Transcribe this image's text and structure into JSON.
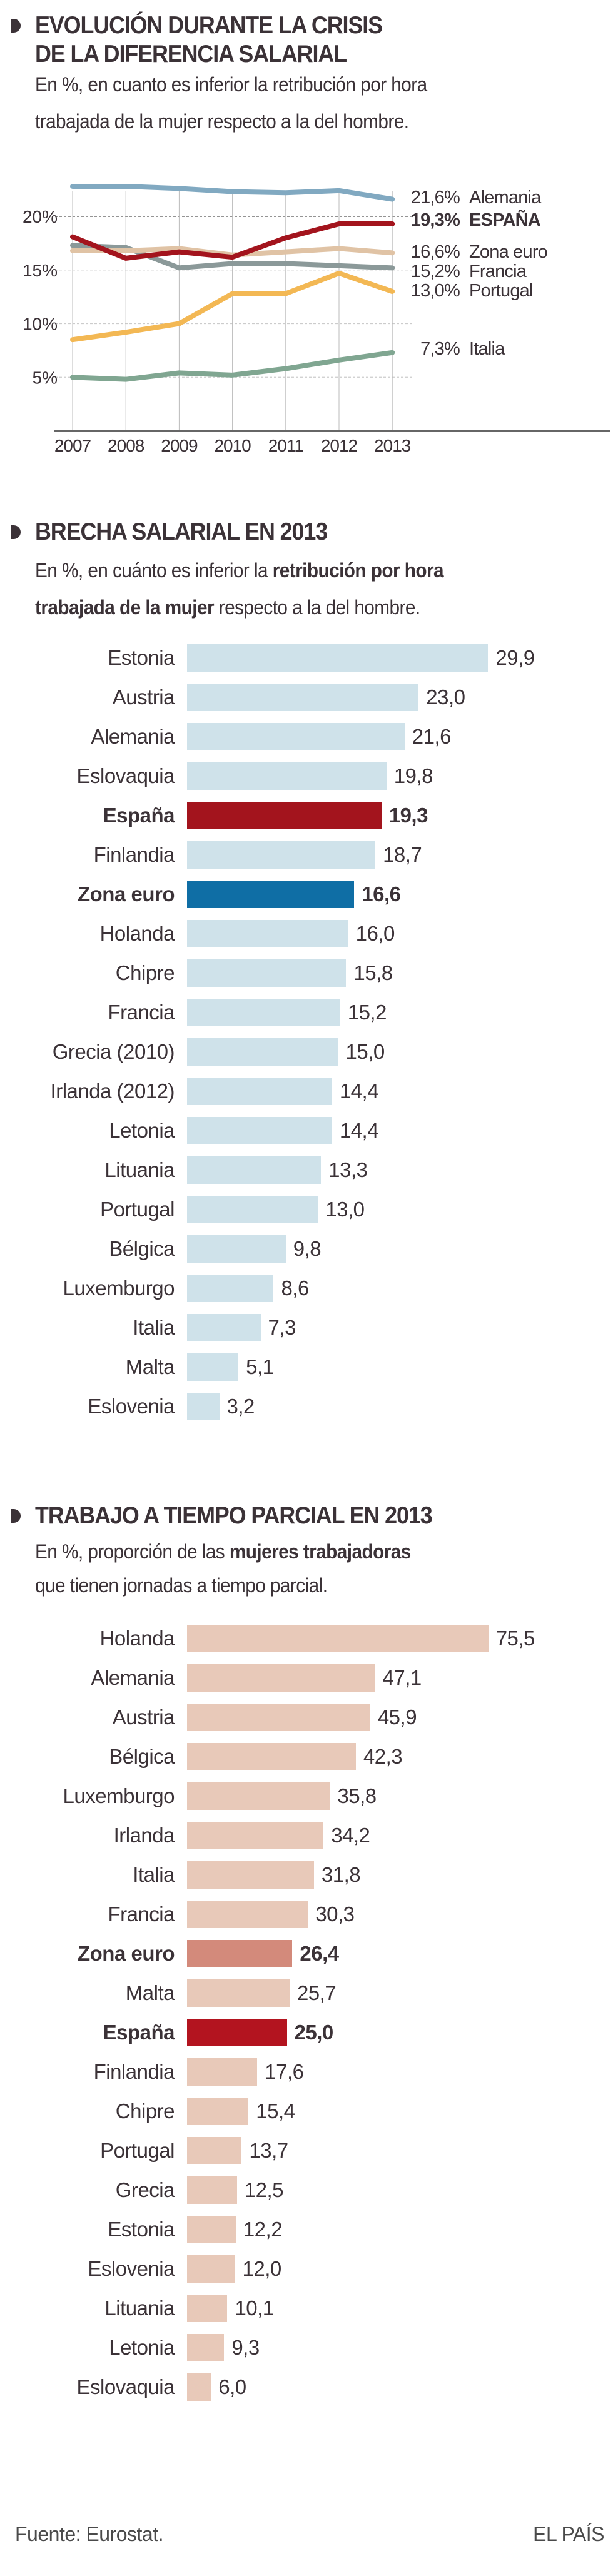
{
  "section1": {
    "title_line1": "EVOLUCIÓN DURANTE LA CRISIS",
    "title_line2": "DE LA DIFERENCIA SALARIAL",
    "subtitle_line1": "En %, en cuanto es inferior la retribución por hora",
    "subtitle_line2": "trabajada de la mujer respecto a la del hombre."
  },
  "section2": {
    "title": "BRECHA SALARIAL EN 2013",
    "subtitle_line1": [
      {
        "text": "En %, en cuánto es inferior la ",
        "bold": false
      },
      {
        "text": "retribución por hora",
        "bold": true
      }
    ],
    "subtitle_line2": [
      {
        "text": "trabajada de la mujer",
        "bold": true
      },
      {
        "text": " respecto a la del hombre.",
        "bold": false
      }
    ]
  },
  "section3": {
    "title": "TRABAJO A TIEMPO PARCIAL EN 2013",
    "subtitle_line1": [
      {
        "text": "En %, proporción de las ",
        "bold": false
      },
      {
        "text": "mujeres trabajadoras",
        "bold": true
      }
    ],
    "subtitle_line2": [
      {
        "text": "que tienen jornadas a tiempo parcial.",
        "bold": false
      }
    ]
  },
  "footer": {
    "source": "Fuente: Eurostat.",
    "brand": "EL PAÍS"
  },
  "chart_data": [
    {
      "type": "line",
      "title": "EVOLUCIÓN DURANTE LA CRISIS DE LA DIFERENCIA SALARIAL",
      "x": [
        2007,
        2008,
        2009,
        2010,
        2011,
        2012,
        2013
      ],
      "x_tick_labels": [
        "2007",
        "2008",
        "2009",
        "2010",
        "2011",
        "2012",
        "2013"
      ],
      "y_ticks": [
        5,
        10,
        15,
        20
      ],
      "y_tick_labels": [
        "5%",
        "10%",
        "15%",
        "20%"
      ],
      "ylim": [
        0,
        23
      ],
      "grid": "horizontal dashed + vertical per year",
      "legend": "end-of-line labels, right",
      "series": [
        {
          "name": "Alemania",
          "end_label": "21,6%",
          "color": "#81a9c1",
          "bold": false,
          "values": [
            22.8,
            22.8,
            22.6,
            22.3,
            22.2,
            22.4,
            21.6
          ]
        },
        {
          "name": "ESPAÑA",
          "end_label": "19,3%",
          "color": "#a3141d",
          "bold": true,
          "values": [
            18.1,
            16.1,
            16.7,
            16.2,
            18.0,
            19.3,
            19.3
          ]
        },
        {
          "name": "Zona euro",
          "end_label": "16,6%",
          "color": "#e0c3a5",
          "bold": false,
          "values": [
            16.8,
            16.8,
            17.0,
            16.4,
            16.7,
            17.0,
            16.6
          ]
        },
        {
          "name": "Francia",
          "end_label": "15,2%",
          "color": "#8b9999",
          "bold": false,
          "values": [
            17.3,
            17.1,
            15.2,
            15.6,
            15.6,
            15.4,
            15.2
          ]
        },
        {
          "name": "Portugal",
          "end_label": "13,0%",
          "color": "#f3b854",
          "bold": false,
          "values": [
            8.5,
            9.2,
            10.0,
            12.8,
            12.8,
            14.7,
            13.0
          ]
        },
        {
          "name": "Italia",
          "end_label": "7,3%",
          "color": "#80a691",
          "bold": false,
          "values": [
            5.0,
            4.8,
            5.4,
            5.2,
            5.8,
            6.6,
            7.3
          ]
        }
      ]
    },
    {
      "type": "bar",
      "orientation": "horizontal",
      "title": "BRECHA SALARIAL EN 2013",
      "default_color": "#cfe2ea",
      "categories": [
        "Estonia",
        "Austria",
        "Alemania",
        "Eslovaquia",
        "España",
        "Finlandia",
        "Zona euro",
        "Holanda",
        "Chipre",
        "Francia",
        "Grecia (2010)",
        "Irlanda (2012)",
        "Letonia",
        "Lituania",
        "Portugal",
        "Bélgica",
        "Luxemburgo",
        "Italia",
        "Malta",
        "Eslovenia"
      ],
      "values": [
        29.9,
        23.0,
        21.6,
        19.8,
        19.3,
        18.7,
        16.6,
        16.0,
        15.8,
        15.2,
        15.0,
        14.4,
        14.4,
        13.3,
        13.0,
        9.8,
        8.6,
        7.3,
        5.1,
        3.2
      ],
      "value_labels": [
        "29,9",
        "23,0",
        "21,6",
        "19,8",
        "19,3",
        "18,7",
        "16,6",
        "16,0",
        "15,8",
        "15,2",
        "15,0",
        "14,4",
        "14,4",
        "13,3",
        "13,0",
        "9,8",
        "8,6",
        "7,3",
        "5,1",
        "3,2"
      ],
      "highlights": {
        "España": "#a3141d",
        "Zona euro": "#0f6ea5"
      }
    },
    {
      "type": "bar",
      "orientation": "horizontal",
      "title": "TRABAJO A TIEMPO PARCIAL EN 2013",
      "default_color": "#e8c9b9",
      "categories": [
        "Holanda",
        "Alemania",
        "Austria",
        "Bélgica",
        "Luxemburgo",
        "Irlanda",
        "Italia",
        "Francia",
        "Zona euro",
        "Malta",
        "España",
        "Finlandia",
        "Chipre",
        "Portugal",
        "Grecia",
        "Estonia",
        "Eslovenia",
        "Lituania",
        "Letonia",
        "Eslovaquia"
      ],
      "values": [
        75.5,
        47.1,
        45.9,
        42.3,
        35.8,
        34.2,
        31.8,
        30.3,
        26.4,
        25.7,
        25.0,
        17.6,
        15.4,
        13.7,
        12.5,
        12.2,
        12.0,
        10.1,
        9.3,
        6.0
      ],
      "value_labels": [
        "75,5",
        "47,1",
        "45,9",
        "42,3",
        "35,8",
        "34,2",
        "31,8",
        "30,3",
        "26,4",
        "25,7",
        "25,0",
        "17,6",
        "15,4",
        "13,7",
        "12,5",
        "12,2",
        "12,0",
        "10,1",
        "9,3",
        "6,0"
      ],
      "highlights": {
        "Zona euro": "#d38a7b",
        "España": "#b3141f"
      }
    }
  ]
}
